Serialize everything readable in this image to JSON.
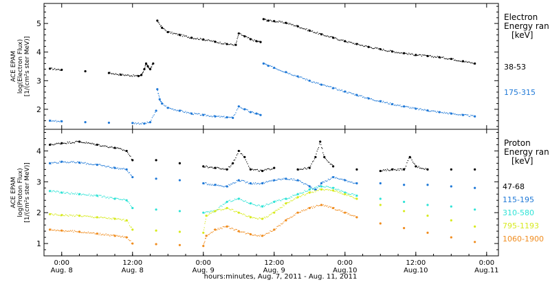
{
  "x_axis": {
    "title": "hours:minutes, Aug.  7, 2011 - Aug. 11, 2011",
    "ticks": [
      {
        "t": 0,
        "time": "0:00",
        "day": "Aug. 8"
      },
      {
        "t": 12,
        "time": "12:00",
        "day": "Aug. 8"
      },
      {
        "t": 24,
        "time": "0:00",
        "day": "Aug. 9"
      },
      {
        "t": 36,
        "time": "12:00",
        "day": "Aug. 9"
      },
      {
        "t": 48,
        "time": "0:00",
        "day": "Aug.10"
      },
      {
        "t": 60,
        "time": "12:00",
        "day": "Aug.10"
      },
      {
        "t": 72,
        "time": "0:00",
        "day": "Aug.11"
      }
    ]
  },
  "chart_data": [
    {
      "type": "scatter",
      "title": "",
      "ylabel": [
        "ACE EPAM",
        "log(Electron Flux)",
        "[1/(cm²s ster MeV)]"
      ],
      "legend_title": [
        "Electron",
        "Energy ran",
        "[keV]"
      ],
      "xlim": [
        -3,
        74
      ],
      "ylim": [
        1.3,
        5.7
      ],
      "yticks": [
        2,
        3,
        4,
        5
      ],
      "series": [
        {
          "name": "38-53",
          "color": "#000000",
          "points": [
            [
              -2,
              3.42
            ],
            [
              0,
              3.38
            ],
            [
              4,
              3.33
            ],
            [
              8,
              3.27
            ],
            [
              10,
              3.21
            ],
            [
              13,
              3.16
            ],
            [
              13.5,
              3.2
            ],
            [
              14,
              3.4
            ],
            [
              14.3,
              3.6
            ],
            [
              14.6,
              3.5
            ],
            [
              15,
              3.4
            ],
            [
              15.5,
              3.6
            ],
            [
              16.2,
              5.1
            ],
            [
              17,
              4.85
            ],
            [
              18,
              4.7
            ],
            [
              20,
              4.6
            ],
            [
              22,
              4.5
            ],
            [
              24,
              4.44
            ],
            [
              26,
              4.36
            ],
            [
              28,
              4.28
            ],
            [
              29.5,
              4.25
            ],
            [
              30,
              4.65
            ],
            [
              31,
              4.55
            ],
            [
              32,
              4.45
            ],
            [
              33,
              4.38
            ],
            [
              33.7,
              4.35
            ],
            [
              34.2,
              5.15
            ],
            [
              35,
              5.1
            ],
            [
              36,
              5.08
            ],
            [
              38,
              5.02
            ],
            [
              40,
              4.9
            ],
            [
              42,
              4.75
            ],
            [
              44,
              4.62
            ],
            [
              46,
              4.5
            ],
            [
              48,
              4.38
            ],
            [
              50,
              4.28
            ],
            [
              52,
              4.18
            ],
            [
              54,
              4.1
            ],
            [
              56,
              4.02
            ],
            [
              58,
              3.96
            ],
            [
              60,
              3.9
            ],
            [
              62,
              3.86
            ],
            [
              64,
              3.82
            ],
            [
              66,
              3.76
            ],
            [
              68,
              3.68
            ],
            [
              70,
              3.6
            ]
          ]
        },
        {
          "name": "175-315",
          "color": "#1e78d7",
          "points": [
            [
              -2,
              1.6
            ],
            [
              0,
              1.58
            ],
            [
              4,
              1.55
            ],
            [
              8,
              1.53
            ],
            [
              12,
              1.52
            ],
            [
              14,
              1.5
            ],
            [
              15,
              1.55
            ],
            [
              16,
              1.95
            ],
            [
              16.2,
              2.7
            ],
            [
              16.6,
              2.35
            ],
            [
              17,
              2.2
            ],
            [
              18,
              2.05
            ],
            [
              20,
              1.95
            ],
            [
              22,
              1.85
            ],
            [
              24,
              1.8
            ],
            [
              26,
              1.75
            ],
            [
              28,
              1.72
            ],
            [
              29,
              1.7
            ],
            [
              30,
              2.1
            ],
            [
              31,
              2.0
            ],
            [
              32,
              1.9
            ],
            [
              33,
              1.85
            ],
            [
              33.7,
              1.8
            ],
            [
              34.2,
              3.6
            ],
            [
              35,
              3.52
            ],
            [
              36,
              3.45
            ],
            [
              38,
              3.3
            ],
            [
              40,
              3.15
            ],
            [
              42,
              3.0
            ],
            [
              44,
              2.86
            ],
            [
              46,
              2.74
            ],
            [
              48,
              2.62
            ],
            [
              50,
              2.5
            ],
            [
              52,
              2.38
            ],
            [
              54,
              2.28
            ],
            [
              56,
              2.18
            ],
            [
              58,
              2.1
            ],
            [
              60,
              2.02
            ],
            [
              62,
              1.96
            ],
            [
              64,
              1.9
            ],
            [
              66,
              1.85
            ],
            [
              68,
              1.8
            ],
            [
              70,
              1.75
            ]
          ]
        }
      ]
    },
    {
      "type": "scatter",
      "title": "",
      "ylabel": [
        "ACE EPAM",
        "log(Proton Flux)",
        "[1/(cm²s ster MeV)]"
      ],
      "legend_title": [
        "Proton",
        "Energy ran",
        "[keV]"
      ],
      "xlim": [
        -3,
        74
      ],
      "ylim": [
        0.6,
        4.7
      ],
      "yticks": [
        1,
        2,
        3,
        4
      ],
      "series": [
        {
          "name": "47-68",
          "color": "#000000",
          "points": [
            [
              -2,
              4.2
            ],
            [
              0,
              4.25
            ],
            [
              3,
              4.3
            ],
            [
              6,
              4.2
            ],
            [
              9,
              4.1
            ],
            [
              11,
              4.0
            ],
            [
              12,
              3.7
            ],
            [
              16,
              3.7
            ],
            [
              20,
              3.6
            ],
            [
              24,
              3.5
            ],
            [
              26,
              3.45
            ],
            [
              28,
              3.4
            ],
            [
              29,
              3.6
            ],
            [
              30,
              4.0
            ],
            [
              31,
              3.8
            ],
            [
              32,
              3.4
            ],
            [
              34,
              3.35
            ],
            [
              36,
              3.45
            ],
            [
              40,
              3.4
            ],
            [
              42,
              3.45
            ],
            [
              43,
              3.8
            ],
            [
              43.8,
              4.3
            ],
            [
              44.5,
              3.8
            ],
            [
              46,
              3.5
            ],
            [
              50,
              3.4
            ],
            [
              54,
              3.35
            ],
            [
              56,
              3.4
            ],
            [
              58,
              3.4
            ],
            [
              59,
              3.8
            ],
            [
              60,
              3.5
            ],
            [
              62,
              3.4
            ],
            [
              66,
              3.4
            ],
            [
              70,
              3.4
            ]
          ]
        },
        {
          "name": "115-195",
          "color": "#1e78d7",
          "points": [
            [
              -2,
              3.6
            ],
            [
              0,
              3.65
            ],
            [
              3,
              3.62
            ],
            [
              6,
              3.55
            ],
            [
              9,
              3.45
            ],
            [
              11,
              3.4
            ],
            [
              12,
              3.15
            ],
            [
              16,
              3.1
            ],
            [
              20,
              3.05
            ],
            [
              24,
              2.95
            ],
            [
              26,
              2.9
            ],
            [
              28,
              2.85
            ],
            [
              30,
              3.05
            ],
            [
              32,
              2.95
            ],
            [
              34,
              2.95
            ],
            [
              36,
              3.05
            ],
            [
              38,
              3.1
            ],
            [
              40,
              3.05
            ],
            [
              42,
              2.85
            ],
            [
              43,
              2.75
            ],
            [
              44,
              2.95
            ],
            [
              46,
              3.15
            ],
            [
              48,
              3.05
            ],
            [
              50,
              2.95
            ],
            [
              54,
              2.95
            ],
            [
              58,
              2.9
            ],
            [
              62,
              2.9
            ],
            [
              66,
              2.85
            ],
            [
              70,
              2.8
            ]
          ]
        },
        {
          "name": "310-580",
          "color": "#2ee3d6",
          "points": [
            [
              -2,
              2.7
            ],
            [
              0,
              2.65
            ],
            [
              3,
              2.6
            ],
            [
              6,
              2.55
            ],
            [
              9,
              2.45
            ],
            [
              11,
              2.4
            ],
            [
              12,
              2.15
            ],
            [
              16,
              2.1
            ],
            [
              20,
              2.05
            ],
            [
              24,
              2.0
            ],
            [
              26,
              2.05
            ],
            [
              28,
              2.35
            ],
            [
              30,
              2.45
            ],
            [
              32,
              2.3
            ],
            [
              34,
              2.2
            ],
            [
              36,
              2.35
            ],
            [
              38,
              2.45
            ],
            [
              40,
              2.6
            ],
            [
              42,
              2.75
            ],
            [
              44,
              2.85
            ],
            [
              46,
              2.8
            ],
            [
              48,
              2.65
            ],
            [
              50,
              2.55
            ],
            [
              54,
              2.45
            ],
            [
              58,
              2.35
            ],
            [
              62,
              2.25
            ],
            [
              66,
              2.2
            ],
            [
              70,
              2.1
            ]
          ]
        },
        {
          "name": "795-1193",
          "color": "#d7ea1e",
          "points": [
            [
              -2,
              1.95
            ],
            [
              0,
              1.92
            ],
            [
              3,
              1.9
            ],
            [
              6,
              1.85
            ],
            [
              9,
              1.8
            ],
            [
              11,
              1.75
            ],
            [
              12,
              1.45
            ],
            [
              16,
              1.42
            ],
            [
              20,
              1.38
            ],
            [
              24,
              1.35
            ],
            [
              24.5,
              1.9
            ],
            [
              26,
              2.05
            ],
            [
              28,
              2.15
            ],
            [
              30,
              2.0
            ],
            [
              32,
              1.85
            ],
            [
              34,
              1.8
            ],
            [
              36,
              2.0
            ],
            [
              38,
              2.3
            ],
            [
              40,
              2.5
            ],
            [
              42,
              2.65
            ],
            [
              44,
              2.75
            ],
            [
              46,
              2.72
            ],
            [
              48,
              2.6
            ],
            [
              50,
              2.45
            ],
            [
              54,
              2.25
            ],
            [
              58,
              2.05
            ],
            [
              62,
              1.9
            ],
            [
              66,
              1.75
            ],
            [
              70,
              1.55
            ]
          ]
        },
        {
          "name": "1060-1900",
          "color": "#f08c1e",
          "points": [
            [
              -2,
              1.45
            ],
            [
              0,
              1.42
            ],
            [
              3,
              1.38
            ],
            [
              6,
              1.32
            ],
            [
              9,
              1.25
            ],
            [
              11,
              1.2
            ],
            [
              12,
              1.0
            ],
            [
              16,
              0.98
            ],
            [
              20,
              0.95
            ],
            [
              24,
              0.92
            ],
            [
              24.5,
              1.25
            ],
            [
              26,
              1.45
            ],
            [
              28,
              1.55
            ],
            [
              30,
              1.4
            ],
            [
              32,
              1.3
            ],
            [
              34,
              1.25
            ],
            [
              36,
              1.45
            ],
            [
              38,
              1.75
            ],
            [
              40,
              2.0
            ],
            [
              42,
              2.15
            ],
            [
              44,
              2.25
            ],
            [
              46,
              2.15
            ],
            [
              48,
              2.0
            ],
            [
              50,
              1.85
            ],
            [
              54,
              1.65
            ],
            [
              58,
              1.5
            ],
            [
              62,
              1.35
            ],
            [
              66,
              1.2
            ],
            [
              70,
              1.05
            ]
          ]
        }
      ]
    }
  ]
}
